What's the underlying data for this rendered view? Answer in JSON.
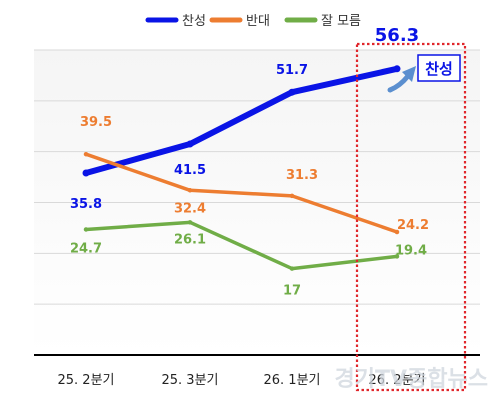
{
  "chart_data": {
    "type": "line",
    "categories": [
      "25. 2분기",
      "25. 3분기",
      "26. 1분기",
      "26. 2분기"
    ],
    "ylim": [
      0,
      60
    ],
    "grid": true,
    "legend_position": "top-center",
    "series": [
      {
        "name": "찬성",
        "color": "#0a14e6",
        "values": [
          35.8,
          41.5,
          51.7,
          56.3
        ],
        "labels": [
          "35.8",
          "41.5",
          "51.7",
          "56.3"
        ]
      },
      {
        "name": "반대",
        "color": "#ed7d31",
        "values": [
          39.5,
          32.4,
          31.3,
          24.2
        ],
        "labels": [
          "39.5",
          "32.4",
          "31.3",
          "24.2"
        ]
      },
      {
        "name": "잘 모름",
        "color": "#70ad47",
        "values": [
          24.7,
          26.1,
          17,
          19.4
        ],
        "labels": [
          "24.7",
          "26.1",
          "17",
          "19.4"
        ]
      }
    ],
    "highlight": {
      "category": "26. 2분기",
      "callout": "찬성",
      "border_color": "#e0262b"
    }
  },
  "watermark": "경기TV종합뉴스"
}
